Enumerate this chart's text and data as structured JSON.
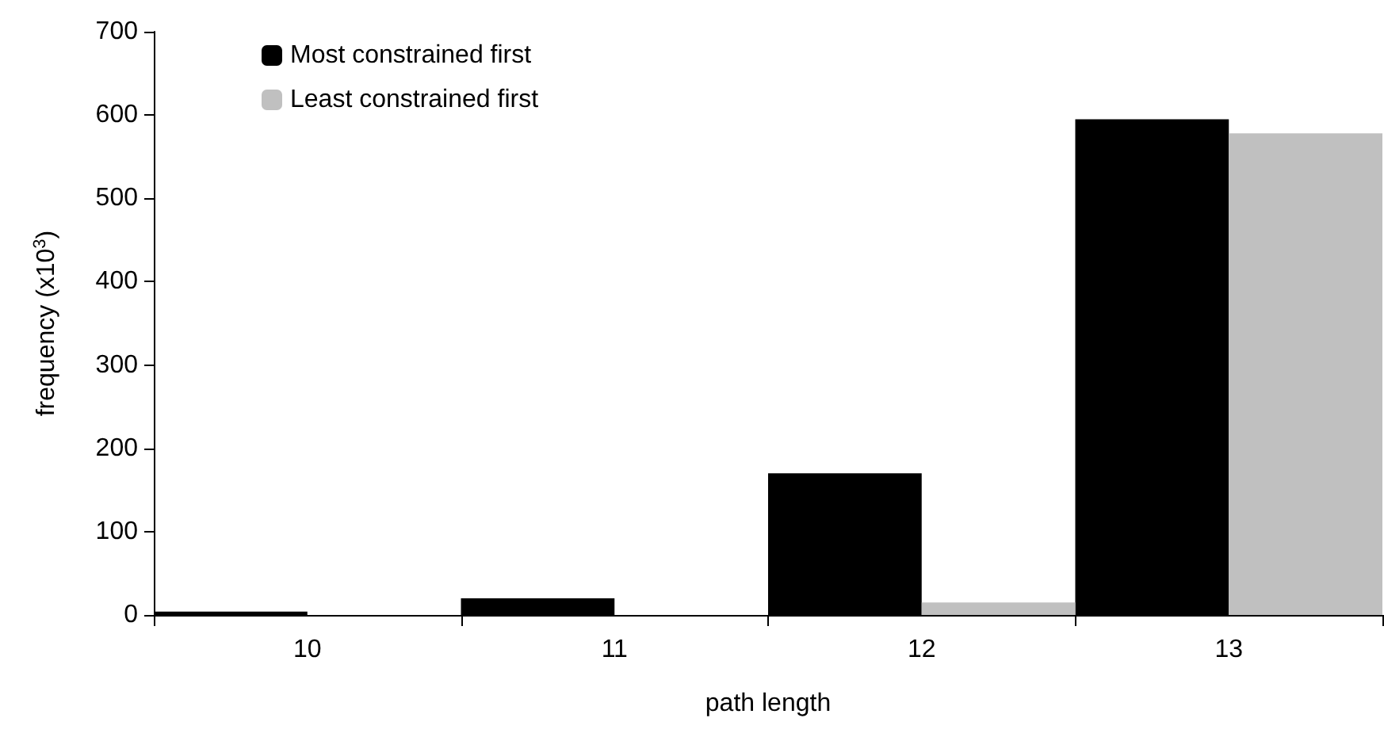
{
  "chart_data": {
    "type": "bar",
    "xlabel": "path length",
    "ylabel": "frequency (x10$^{3}$)",
    "categories": [
      "10",
      "11",
      "12",
      "13"
    ],
    "series": [
      {
        "name": "Most constrained first",
        "color": "#000000",
        "values": [
          4,
          20,
          170,
          595
        ]
      },
      {
        "name": "Least constrained first",
        "color": "#c0c0c0",
        "values": [
          0,
          0,
          15,
          578
        ]
      }
    ],
    "ylim": [
      0,
      700
    ],
    "yticks": [
      0,
      100,
      200,
      300,
      400,
      500,
      600,
      700
    ],
    "grid": false,
    "legend": "top left"
  }
}
